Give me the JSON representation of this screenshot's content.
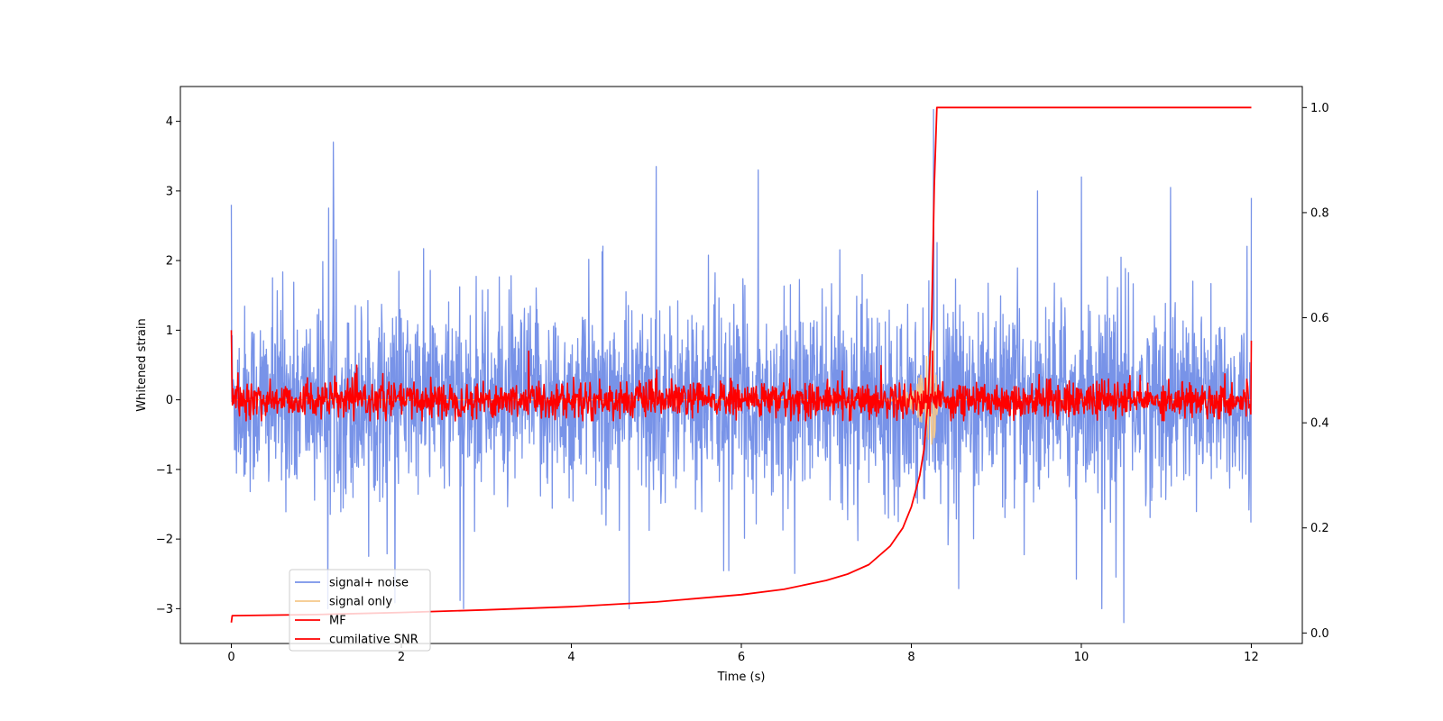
{
  "colors": {
    "signal_noise": "#7893e8",
    "signal_only": "#f5c88a",
    "mf": "#ff0000",
    "cumulative_snr": "#ff0000"
  },
  "chart_data": {
    "type": "line",
    "xlabel": "Time (s)",
    "ylabel": "Whitened strain",
    "xlim": [
      -0.6,
      12.6
    ],
    "ylim": [
      -3.5,
      4.5
    ],
    "y2lim": [
      -0.02,
      1.04
    ],
    "x_ticks": [
      0,
      2,
      4,
      6,
      8,
      10,
      12
    ],
    "x_tick_labels": [
      "0",
      "2",
      "4",
      "6",
      "8",
      "10",
      "12"
    ],
    "y_ticks": [
      -3,
      -2,
      -1,
      0,
      1,
      2,
      3,
      4
    ],
    "y_tick_labels": [
      "−3",
      "−2",
      "−1",
      "0",
      "1",
      "2",
      "3",
      "4"
    ],
    "y2_ticks": [
      0.0,
      0.2,
      0.4,
      0.6,
      0.8,
      1.0
    ],
    "y2_tick_labels": [
      "0.0",
      "0.2",
      "0.4",
      "0.6",
      "0.8",
      "1.0"
    ],
    "grid": false,
    "legend": {
      "placement": "lower-left",
      "entries": [
        "signal+ noise",
        "signal only",
        "MF",
        "cumilative SNR"
      ]
    },
    "series": [
      {
        "name": "signal+ noise",
        "axis": "left",
        "x_range": [
          0,
          12
        ],
        "noise_std": 0.85,
        "approx_range": [
          -3.2,
          4.2
        ],
        "notable_peaks": [
          [
            0.0,
            2.8
          ],
          [
            1.2,
            3.7
          ],
          [
            5.0,
            3.35
          ],
          [
            6.2,
            3.3
          ],
          [
            8.26,
            4.17
          ],
          [
            10.0,
            3.2
          ],
          [
            10.5,
            -3.2
          ],
          [
            11.05,
            3.05
          ],
          [
            12.0,
            2.9
          ]
        ]
      },
      {
        "name": "signal only",
        "axis": "left",
        "x_range": [
          0,
          12
        ],
        "baseline": 0,
        "chirp_peak_time": 8.27,
        "chirp_peak_amplitude": [
          -1.1,
          1.2
        ]
      },
      {
        "name": "MF",
        "axis": "left",
        "x_range": [
          0,
          12
        ],
        "noise_std": 0.13,
        "approx_range": [
          -0.3,
          0.7
        ],
        "start_value": 1.0,
        "end_value": 0.85,
        "notable_peaks": [
          [
            3.5,
            0.7
          ],
          [
            8.25,
            0.7
          ],
          [
            0.0,
            1.0
          ],
          [
            12.0,
            0.85
          ]
        ]
      },
      {
        "name": "cumilative SNR",
        "axis": "right",
        "points": [
          [
            0.0,
            0.02
          ],
          [
            0.01,
            0.033
          ],
          [
            0.5,
            0.034
          ],
          [
            1,
            0.035
          ],
          [
            2,
            0.039
          ],
          [
            3,
            0.044
          ],
          [
            4,
            0.05
          ],
          [
            5,
            0.059
          ],
          [
            6,
            0.073
          ],
          [
            6.5,
            0.083
          ],
          [
            7,
            0.1
          ],
          [
            7.25,
            0.112
          ],
          [
            7.5,
            0.13
          ],
          [
            7.75,
            0.165
          ],
          [
            7.9,
            0.2
          ],
          [
            8.0,
            0.24
          ],
          [
            8.1,
            0.3
          ],
          [
            8.15,
            0.35
          ],
          [
            8.2,
            0.45
          ],
          [
            8.24,
            0.6
          ],
          [
            8.27,
            0.85
          ],
          [
            8.3,
            1.0
          ],
          [
            12.0,
            1.0
          ]
        ]
      }
    ]
  }
}
